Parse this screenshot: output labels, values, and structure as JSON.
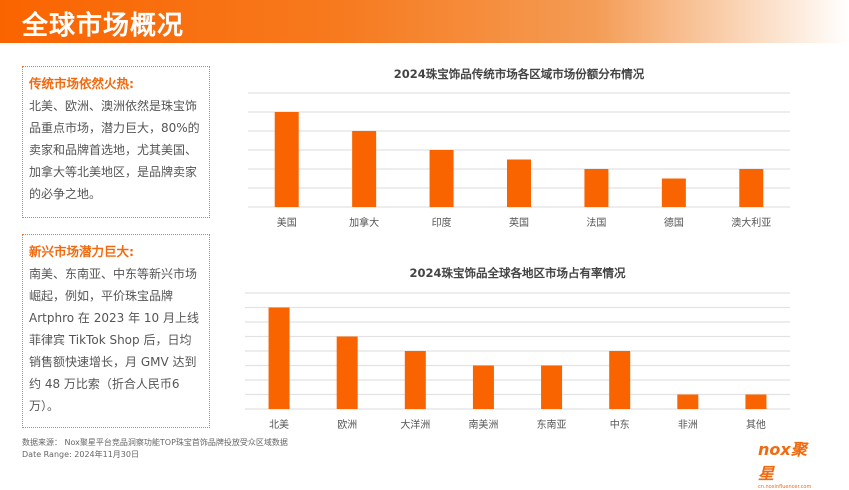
{
  "header": {
    "title": "全球市场概况"
  },
  "boxes": [
    {
      "heading": "传统市场依然火热:",
      "body": "北美、欧洲、澳洲依然是珠宝饰品重点市场，潜力巨大，80%的卖家和品牌首选地，尤其美国、加拿大等北美地区，是品牌卖家的必争之地。"
    },
    {
      "heading": "新兴市场潜力巨大:",
      "body": "南美、东南亚、中东等新兴市场崛起，例如，平价珠宝品牌Artphro 在 2023 年 10 月上线菲律宾 TikTok Shop 后，日均销售额快速增长，月 GMV 达到约 48 万比索（折合人民币6万）。"
    }
  ],
  "footer": {
    "source": "数据来源：  Nox聚星平台竞品洞察功能TOP珠宝首饰品牌投放受众区域数据",
    "date": "Date Range:   2024年11月30日",
    "logo_text": "nox聚星",
    "logo_url": "cn.noxinfluencer.com"
  },
  "chart_data": [
    {
      "type": "bar",
      "title": "2024珠宝饰品传统市场各区域市场份额分布情况",
      "categories": [
        "美国",
        "加拿大",
        "印度",
        "英国",
        "法国",
        "德国",
        "澳大利亚"
      ],
      "values": [
        5,
        4,
        3,
        2.5,
        2,
        1.5,
        2
      ],
      "ylim": [
        0,
        6
      ],
      "grid": true,
      "color": "#fa6400"
    },
    {
      "type": "bar",
      "title": "2024珠宝饰品全球各地区市场占有率情况",
      "categories": [
        "北美",
        "欧洲",
        "大洋洲",
        "南美洲",
        "东南亚",
        "中东",
        "非洲",
        "其他"
      ],
      "values": [
        7,
        5,
        4,
        3,
        3,
        4,
        1,
        1
      ],
      "ylim": [
        0,
        8
      ],
      "grid": true,
      "color": "#fa6400"
    }
  ]
}
